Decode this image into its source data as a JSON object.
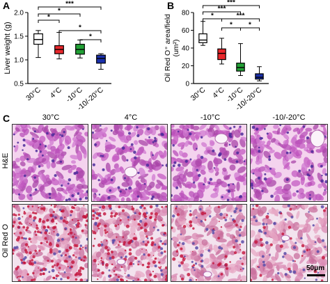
{
  "panels": {
    "a": "A",
    "b": "B",
    "c": "C"
  },
  "chart_data": [
    {
      "type": "box",
      "categories": [
        "30°C",
        "4°C",
        "-10°C",
        "-10/-20°C"
      ],
      "colors": [
        "#ffffff",
        "#e8272b",
        "#21a035",
        "#1a2faa"
      ],
      "ylabel": "Liver weight (g)",
      "ylim": [
        0.5,
        2.0
      ],
      "yticks": [
        "0.5",
        "1.0",
        "1.5",
        "2.0"
      ],
      "boxes": [
        {
          "min": 1.05,
          "q1": 1.33,
          "median": 1.43,
          "q3": 1.55,
          "max": 1.62
        },
        {
          "min": 1.02,
          "q1": 1.13,
          "median": 1.22,
          "q3": 1.3,
          "max": 1.58
        },
        {
          "min": 1.04,
          "q1": 1.12,
          "median": 1.22,
          "q3": 1.33,
          "max": 1.42
        },
        {
          "min": 0.8,
          "q1": 0.93,
          "median": 1.03,
          "q3": 1.1,
          "max": 1.13
        }
      ],
      "significance": [
        {
          "from": 0,
          "to": 3,
          "label": "***"
        },
        {
          "from": 0,
          "to": 2,
          "label": "*"
        },
        {
          "from": 0,
          "to": 1,
          "label": "*"
        },
        {
          "from": 1,
          "to": 3,
          "label": "*"
        },
        {
          "from": 2,
          "to": 3,
          "label": "*"
        }
      ]
    },
    {
      "type": "box",
      "categories": [
        "30°C",
        "4°C",
        "-10°C",
        "-10/-20°C"
      ],
      "colors": [
        "#ffffff",
        "#e8272b",
        "#21a035",
        "#1a2faa"
      ],
      "ylabel": "Oil Red O⁺ area/field",
      "ylabel_unit": "(um²)",
      "ylim": [
        0,
        80
      ],
      "yticks": [
        "0",
        "20",
        "40",
        "60",
        "80"
      ],
      "boxes": [
        {
          "min": 43,
          "q1": 46,
          "median": 49,
          "q3": 56,
          "max": 70
        },
        {
          "min": 22,
          "q1": 27,
          "median": 34,
          "q3": 39,
          "max": 51
        },
        {
          "min": 9,
          "q1": 14,
          "median": 18,
          "q3": 23,
          "max": 45
        },
        {
          "min": 3,
          "q1": 5,
          "median": 7,
          "q3": 11,
          "max": 19
        }
      ],
      "significance": [
        {
          "from": 0,
          "to": 3,
          "label": "***"
        },
        {
          "from": 0,
          "to": 2,
          "label": "***"
        },
        {
          "from": 0,
          "to": 1,
          "label": "*"
        },
        {
          "from": 1,
          "to": 3,
          "label": "***"
        },
        {
          "from": 1,
          "to": 2,
          "label": "*"
        },
        {
          "from": 2,
          "to": 3,
          "label": "*"
        }
      ]
    }
  ],
  "micrograph_grid": {
    "columns": [
      "30°C",
      "4°C",
      "-10°C",
      "-10/-20°C"
    ],
    "rows": [
      "H&E",
      "Oil Red O"
    ],
    "scale_label": "50μm"
  }
}
